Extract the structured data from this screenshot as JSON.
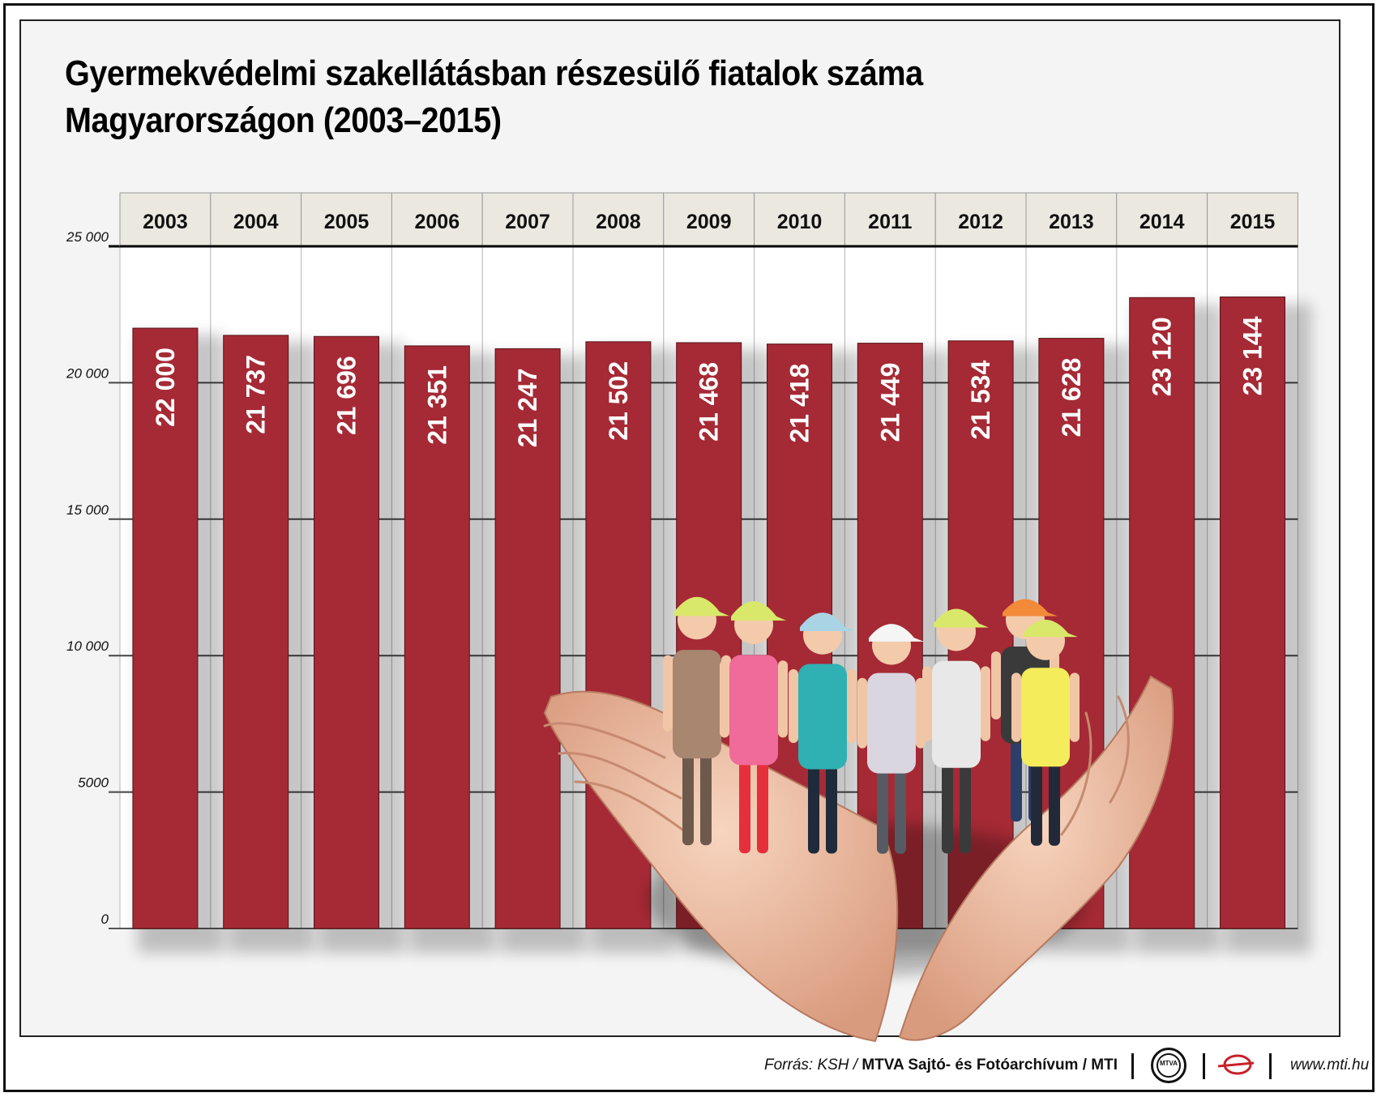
{
  "title_line1": "Gyermekvédelmi szakellátásban részesülő fiatalok száma",
  "title_line2": "Magyarországon (2003–2015)",
  "chart_data": {
    "type": "bar",
    "title": "Gyermekvédelmi szakellátásban részesülő fiatalok száma Magyarországon (2003–2015)",
    "categories": [
      "2003",
      "2004",
      "2005",
      "2006",
      "2007",
      "2008",
      "2009",
      "2010",
      "2011",
      "2012",
      "2013",
      "2014",
      "2015"
    ],
    "values": [
      22000,
      21737,
      21696,
      21351,
      21247,
      21502,
      21468,
      21418,
      21449,
      21534,
      21628,
      23120,
      23144
    ],
    "value_labels": [
      "22 000",
      "21 737",
      "21 696",
      "21 351",
      "21 247",
      "21 502",
      "21 468",
      "21 418",
      "21 449",
      "21 534",
      "21 628",
      "23 120",
      "23 144"
    ],
    "yticks": [
      0,
      5000,
      10000,
      15000,
      20000,
      25000
    ],
    "ytick_labels": [
      "0",
      "5000",
      "10 000",
      "15 000",
      "20 000",
      "25 000"
    ],
    "ylim": [
      0,
      25000
    ],
    "xlabel": "",
    "ylabel": "",
    "grid": true,
    "x_axis_position": "top",
    "bar_color": "#a52a35",
    "label_color": "#ffffff",
    "header_color": "#ebe8e0"
  },
  "footer": {
    "source_prefix": "Forrás: KSH / ",
    "source_bold": "MTVA Sajtó- és Fotóarchívum / MTI",
    "logo_text": "MTVA",
    "url": "www.mti.hu"
  },
  "illustration_icon": "hands-holding-children-photo"
}
